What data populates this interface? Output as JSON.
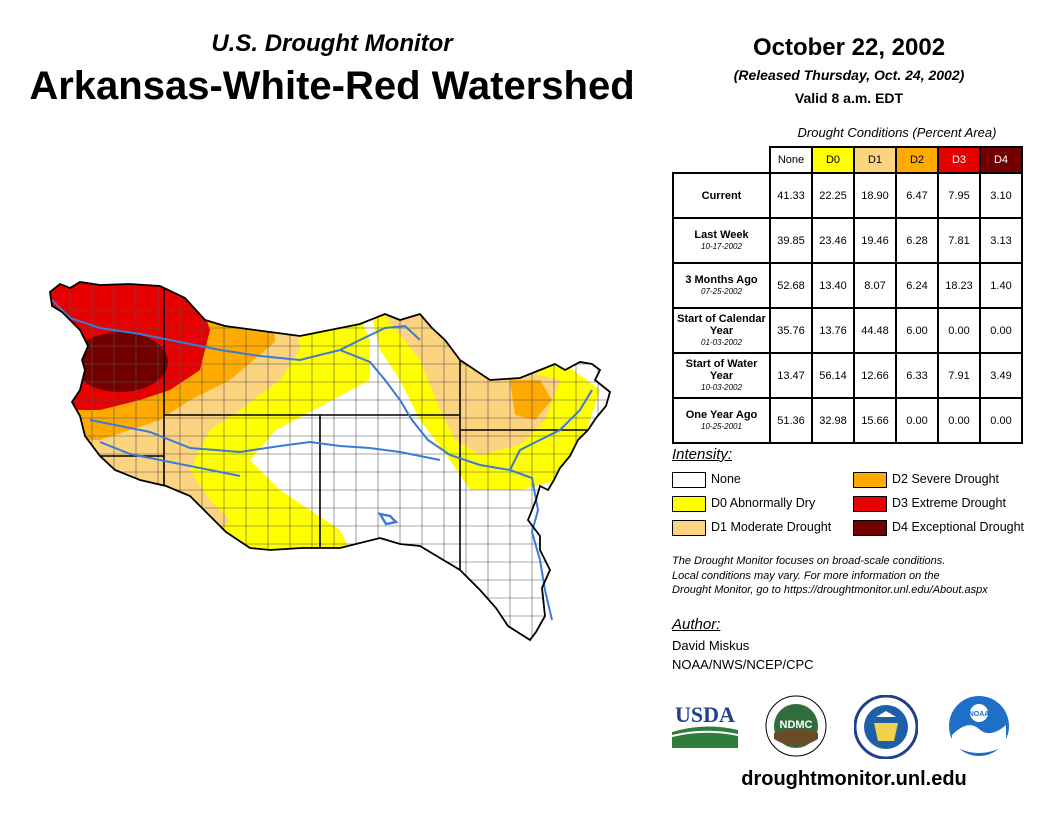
{
  "header": {
    "subtitle": "U.S. Drought Monitor",
    "title": "Arkansas-White-Red Watershed",
    "date": "October 22, 2002",
    "released": "(Released Thursday, Oct. 24, 2002)",
    "valid": "Valid 8 a.m. EDT"
  },
  "table": {
    "caption": "Drought Conditions (Percent Area)",
    "columns": [
      "None",
      "D0",
      "D1",
      "D2",
      "D3",
      "D4"
    ],
    "rows": [
      {
        "label": "Current",
        "sublabel": "",
        "values": [
          "41.33",
          "22.25",
          "18.90",
          "6.47",
          "7.95",
          "3.10"
        ]
      },
      {
        "label": "Last Week",
        "sublabel": "10-17-2002",
        "values": [
          "39.85",
          "23.46",
          "19.46",
          "6.28",
          "7.81",
          "3.13"
        ]
      },
      {
        "label": "3 Months Ago",
        "sublabel": "07-25-2002",
        "values": [
          "52.68",
          "13.40",
          "8.07",
          "6.24",
          "18.23",
          "1.40"
        ]
      },
      {
        "label": "Start of Calendar Year",
        "sublabel": "01-03-2002",
        "values": [
          "35.76",
          "13.76",
          "44.48",
          "6.00",
          "0.00",
          "0.00"
        ]
      },
      {
        "label": "Start of Water Year",
        "sublabel": "10-03-2002",
        "values": [
          "13.47",
          "56.14",
          "12.66",
          "6.33",
          "7.91",
          "3.49"
        ]
      },
      {
        "label": "One Year Ago",
        "sublabel": "10-25-2001",
        "values": [
          "51.36",
          "32.98",
          "15.66",
          "0.00",
          "0.00",
          "0.00"
        ]
      }
    ]
  },
  "legend": {
    "title": "Intensity:",
    "items": [
      {
        "label": "None",
        "color": "#ffffff"
      },
      {
        "label": "D0 Abnormally Dry",
        "color": "#ffff00"
      },
      {
        "label": "D1 Moderate Drought",
        "color": "#fcd37f"
      },
      {
        "label": "D2 Severe Drought",
        "color": "#ffaa00"
      },
      {
        "label": "D3 Extreme Drought",
        "color": "#e60000"
      },
      {
        "label": "D4 Exceptional Drought",
        "color": "#730000"
      }
    ]
  },
  "note": {
    "line1": "The Drought Monitor focuses on broad-scale conditions.",
    "line2": "Local conditions may vary. For more information on the",
    "line3": "Drought Monitor, go to https://droughtmonitor.unl.edu/About.aspx"
  },
  "author": {
    "title": "Author:",
    "name": "David Miskus",
    "org": "NOAA/NWS/NCEP/CPC"
  },
  "logos": {
    "usda": "USDA",
    "ndmc": "NDMC",
    "noaa": "NOAA"
  },
  "footer": {
    "url": "droughtmonitor.unl.edu"
  }
}
